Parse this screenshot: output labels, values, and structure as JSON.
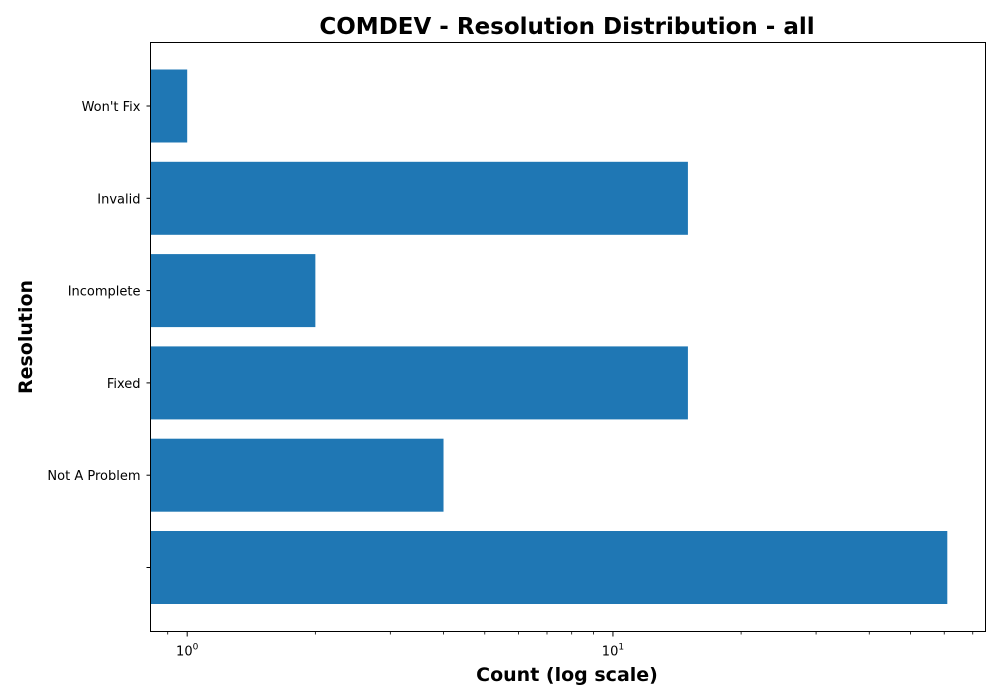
{
  "chart_data": {
    "type": "bar",
    "orientation": "horizontal",
    "title": "COMDEV - Resolution Distribution - all",
    "xlabel": "Count (log scale)",
    "ylabel": "Resolution",
    "x_scale": "log",
    "xlim": [
      0.82,
      75
    ],
    "x_ticks": [
      {
        "value": 1,
        "base": "10",
        "exp": "0"
      },
      {
        "value": 10,
        "base": "10",
        "exp": "1"
      }
    ],
    "categories": [
      "",
      "Not A Problem",
      "Fixed",
      "Incomplete",
      "Invalid",
      "Won't Fix"
    ],
    "values": [
      61,
      4,
      15,
      2,
      15,
      1
    ],
    "bar_color": "#1f77b4",
    "grid": false,
    "legend": "none"
  }
}
